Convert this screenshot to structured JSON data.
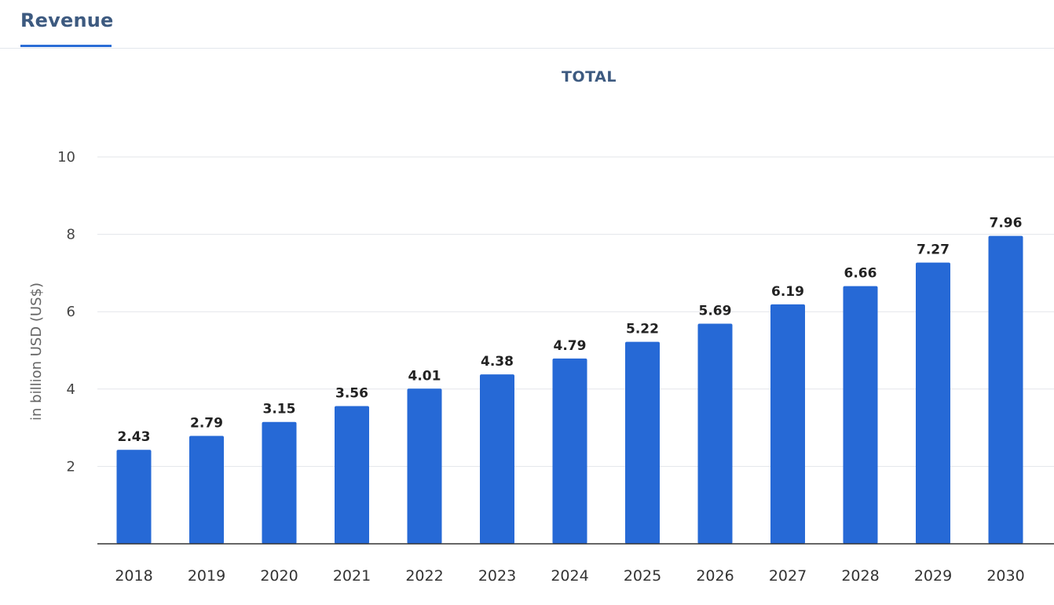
{
  "tabs": [
    {
      "label": "Revenue",
      "active": true
    }
  ],
  "colors": {
    "bar": "#2669d6",
    "accent": "#2b6dd6",
    "title": "#3d5a80"
  },
  "chart_data": {
    "type": "bar",
    "title": "TOTAL",
    "xlabel": "",
    "ylabel": "in billion USD (US$)",
    "ylim": [
      0,
      10
    ],
    "yticks": [
      2,
      4,
      6,
      8,
      10
    ],
    "grid": true,
    "categories": [
      "2018",
      "2019",
      "2020",
      "2021",
      "2022",
      "2023",
      "2024",
      "2025",
      "2026",
      "2027",
      "2028",
      "2029",
      "2030"
    ],
    "values": [
      2.43,
      2.79,
      3.15,
      3.56,
      4.01,
      4.38,
      4.79,
      5.22,
      5.69,
      6.19,
      6.66,
      7.27,
      7.96
    ],
    "value_labels": [
      "2.43",
      "2.79",
      "3.15",
      "3.56",
      "4.01",
      "4.38",
      "4.79",
      "5.22",
      "5.69",
      "6.19",
      "6.66",
      "7.27",
      "7.96"
    ]
  }
}
